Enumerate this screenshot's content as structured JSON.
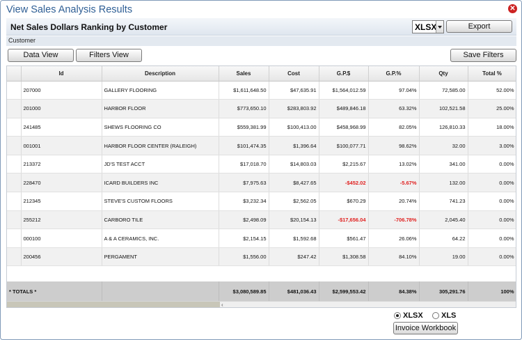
{
  "window": {
    "title": "View Sales Analysis Results"
  },
  "header": {
    "title": "Net Sales Dollars Ranking by Customer",
    "format_selected": "XLSX",
    "export_label": "Export"
  },
  "subheader": {
    "label": "Customer"
  },
  "toolbar": {
    "data_view_label": "Data View",
    "filters_view_label": "Filters View",
    "save_filters_label": "Save Filters"
  },
  "table": {
    "columns": [
      "",
      "Id",
      "Description",
      "Sales",
      "Cost",
      "G.P.$",
      "G.P.%",
      "Qty",
      "Total %"
    ],
    "rows": [
      {
        "id": "207000",
        "description": "GALLERY FLOORING",
        "sales": "$1,611,648.50",
        "cost": "$47,635.91",
        "gp_dollars": "$1,564,012.59",
        "gp_pct": "97.04%",
        "qty": "72,585.00",
        "total_pct": "52.00%",
        "negative": false
      },
      {
        "id": "201000",
        "description": "HARBOR FLOOR",
        "sales": "$773,650.10",
        "cost": "$283,803.92",
        "gp_dollars": "$489,846.18",
        "gp_pct": "63.32%",
        "qty": "102,521.58",
        "total_pct": "25.00%",
        "negative": false
      },
      {
        "id": "241485",
        "description": "SHEWS FLOORING CO",
        "sales": "$559,381.99",
        "cost": "$100,413.00",
        "gp_dollars": "$458,968.99",
        "gp_pct": "82.05%",
        "qty": "126,810.33",
        "total_pct": "18.00%",
        "negative": false
      },
      {
        "id": "001001",
        "description": "HARBOR FLOOR CENTER (RALEIGH)",
        "sales": "$101,474.35",
        "cost": "$1,396.64",
        "gp_dollars": "$100,077.71",
        "gp_pct": "98.62%",
        "qty": "32.00",
        "total_pct": "3.00%",
        "negative": false
      },
      {
        "id": "213372",
        "description": "JD'S TEST ACCT",
        "sales": "$17,018.70",
        "cost": "$14,803.03",
        "gp_dollars": "$2,215.67",
        "gp_pct": "13.02%",
        "qty": "341.00",
        "total_pct": "0.00%",
        "negative": false
      },
      {
        "id": "228470",
        "description": "ICARD BUILDERS INC",
        "sales": "$7,975.63",
        "cost": "$8,427.65",
        "gp_dollars": "-$452.02",
        "gp_pct": "-5.67%",
        "qty": "132.00",
        "total_pct": "0.00%",
        "negative": true
      },
      {
        "id": "212345",
        "description": "STEVE'S CUSTOM FLOORS",
        "sales": "$3,232.34",
        "cost": "$2,562.05",
        "gp_dollars": "$670.29",
        "gp_pct": "20.74%",
        "qty": "741.23",
        "total_pct": "0.00%",
        "negative": false
      },
      {
        "id": "255212",
        "description": "CARBORO TILE",
        "sales": "$2,498.09",
        "cost": "$20,154.13",
        "gp_dollars": "-$17,656.04",
        "gp_pct": "-706.78%",
        "qty": "2,045.40",
        "total_pct": "0.00%",
        "negative": true
      },
      {
        "id": "000100",
        "description": "A & A CERAMICS, INC.",
        "sales": "$2,154.15",
        "cost": "$1,592.68",
        "gp_dollars": "$561.47",
        "gp_pct": "26.06%",
        "qty": "64.22",
        "total_pct": "0.00%",
        "negative": false
      },
      {
        "id": "200456",
        "description": "PERGAMENT",
        "sales": "$1,556.00",
        "cost": "$247.42",
        "gp_dollars": "$1,308.58",
        "gp_pct": "84.10%",
        "qty": "19.00",
        "total_pct": "0.00%",
        "negative": false
      }
    ],
    "totals": {
      "label": "* TOTALS *",
      "sales": "$3,080,589.85",
      "cost": "$481,036.43",
      "gp_dollars": "$2,599,553.42",
      "gp_pct": "84.38%",
      "qty": "305,291.76",
      "total_pct": "100%"
    }
  },
  "footer": {
    "radio_xlsx_label": "XLSX",
    "radio_xls_label": "XLS",
    "selected_format": "XLSX",
    "invoice_button_label": "Invoice Workbook"
  },
  "colors": {
    "title_text": "#2f5f95",
    "negative_text": "#e0201f",
    "close_button": "#cc2222"
  },
  "icons": {
    "close": "close-icon",
    "dropdown": "chevron-down-icon"
  }
}
